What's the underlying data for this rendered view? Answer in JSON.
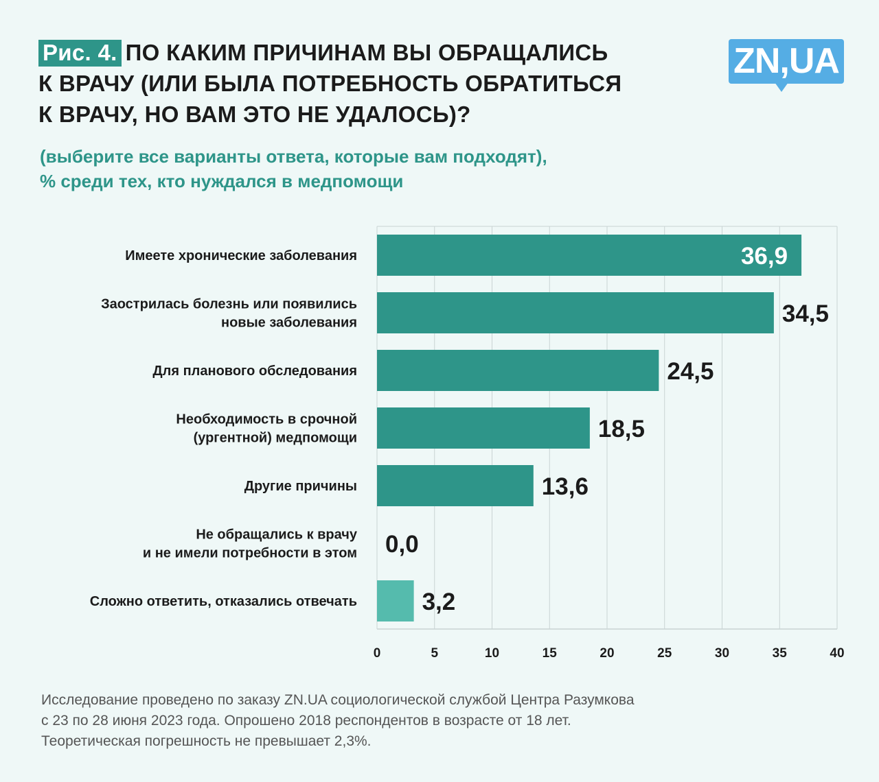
{
  "header": {
    "figure_label": "Рис. 4.",
    "title_line1": "ПО КАКИМ ПРИЧИНАМ ВЫ ОБРАЩАЛИСЬ",
    "title_line2": "К ВРАЧУ (ИЛИ БЫЛА ПОТРЕБНОСТЬ ОБРАТИТЬСЯ",
    "title_line3": "К ВРАЧУ, НО ВАМ ЭТО НЕ УДАЛОСЬ)?",
    "subtitle_line1": "(выберите все варианты ответа, которые вам подходят),",
    "subtitle_line2": "% среди тех, кто нуждался в медпомощи",
    "logo": "ZN,UA"
  },
  "colors": {
    "bar": "#2e9589",
    "bar_highlight": "#55bbad",
    "grid": "#c9d3d3",
    "label": "#1b1b1b",
    "value_inside": "#ffffff",
    "logo": "#55ade4"
  },
  "chart_data": {
    "type": "bar",
    "orientation": "horizontal",
    "title": "ПО КАКИМ ПРИЧИНАМ ВЫ ОБРАЩАЛИСЬ К ВРАЧУ (ИЛИ БЫЛА ПОТРЕБНОСТЬ ОБРАТИТЬСЯ К ВРАЧУ, НО ВАМ ЭТО НЕ УДАЛОСЬ)?",
    "subtitle": "(выберите все варианты ответа, которые вам подходят), % среди тех, кто нуждался в медпомощи",
    "categories": [
      [
        "Имеете хронические заболевания"
      ],
      [
        "Заострилась болезнь или появились",
        "новые заболевания"
      ],
      [
        "Для планового обследования"
      ],
      [
        "Необходимость в срочной",
        "(ургентной) медпомощи"
      ],
      [
        "Другие причины"
      ],
      [
        "Не обращались к врачу",
        "и не имели потребности в этом"
      ],
      [
        "Сложно ответить, отказались отвечать"
      ]
    ],
    "values": [
      36.9,
      34.5,
      24.5,
      18.5,
      13.6,
      0.0,
      3.2
    ],
    "value_labels": [
      "36,9",
      "34,5",
      "24,5",
      "18,5",
      "13,6",
      "0,0",
      "3,2"
    ],
    "highlight_index": 6,
    "label_inside_index": 0,
    "xlim": [
      0,
      40
    ],
    "xticks": [
      0,
      5,
      10,
      15,
      20,
      25,
      30,
      35,
      40
    ],
    "xtick_labels": [
      "0",
      "5",
      "10",
      "15",
      "20",
      "25",
      "30",
      "35",
      "40"
    ],
    "xlabel": "",
    "ylabel": "",
    "grid": true,
    "legend": "none"
  },
  "footer": {
    "line1": "Исследование проведено по заказу ZN.UA социологической службой Центра Разумкова",
    "line2": "с 23 по 28 июня 2023 года. Опрошено 2018 респондентов в возрасте от 18 лет.",
    "line3": "Теоретическая погрешность не превышает 2,3%."
  }
}
